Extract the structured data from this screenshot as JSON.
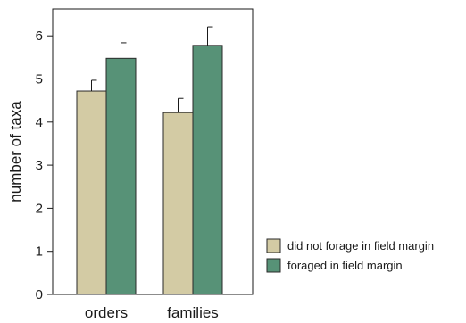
{
  "chart_data": {
    "type": "bar",
    "categories": [
      "orders",
      "families"
    ],
    "series": [
      {
        "name": "did not forage in field margin",
        "color": "#d3cba4",
        "values": [
          4.72,
          4.22
        ],
        "errors": [
          0.25,
          0.33
        ]
      },
      {
        "name": "foraged in field margin",
        "color": "#579277",
        "values": [
          5.48,
          5.78
        ],
        "errors": [
          0.36,
          0.43
        ]
      }
    ],
    "ylabel": "number of taxa",
    "xlabel": "",
    "ylim": [
      0,
      6.6
    ],
    "yticks": [
      "0",
      "1",
      "2",
      "3",
      "4",
      "5",
      "6"
    ],
    "grid": false,
    "legend_position": "bottom-right",
    "error_bars": "one-sided upward"
  }
}
